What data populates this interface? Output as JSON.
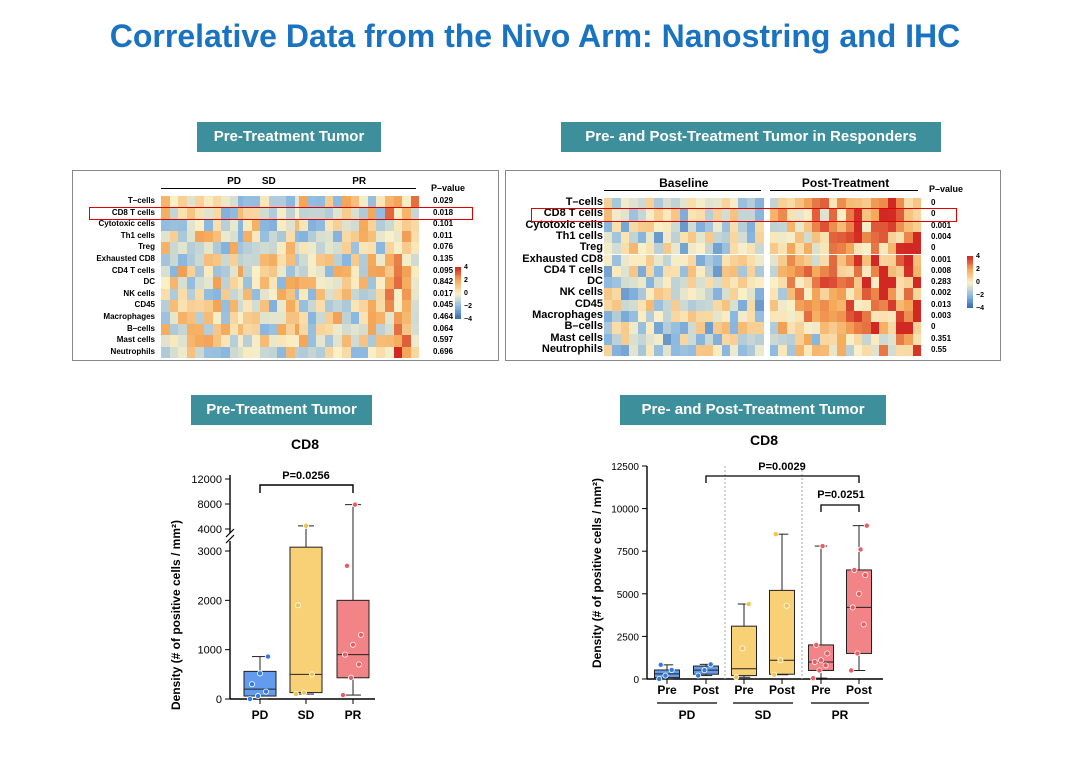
{
  "title": "Correlative Data from the Nivo Arm: Nanostring and IHC",
  "tags": {
    "tl": "Pre-Treatment Tumor",
    "tr": "Pre- and Post-Treatment Tumor in Responders",
    "bl": "Pre-Treatment Tumor",
    "br": "Pre- and Post-Treatment Tumor"
  },
  "colors": {
    "title": "#1a73c0",
    "tag_bg": "#3d8f9c",
    "pd": "#2f7be8",
    "sd": "#f6c24a",
    "pr": "#ee5a5f",
    "highlight": "#e00000"
  },
  "chart_data": [
    {
      "type": "heatmap",
      "panel": "left",
      "groups": [
        "PD",
        "SD",
        "PR"
      ],
      "pvalue_header": "P–value",
      "rows": [
        "T–cells",
        "CD8 T cells",
        "Cytotoxic cells",
        "Th1 cells",
        "Treg",
        "Exhausted CD8",
        "CD4 T cells",
        "DC",
        "NK cells",
        "CD45",
        "Macrophages",
        "B–cells",
        "Mast cells",
        "Neutrophils"
      ],
      "pvalues": [
        "0.029",
        "0.018",
        "0.101",
        "0.011",
        "0.076",
        "0.135",
        "0.095",
        "0.842",
        "0.017",
        "0.045",
        "0.464",
        "0.064",
        "0.597",
        "0.696"
      ],
      "highlighted_row": "CD8 T cells",
      "colorbar_ticks": [
        "4",
        "2",
        "0",
        "−2",
        "−4"
      ]
    },
    {
      "type": "heatmap",
      "panel": "right",
      "groups": [
        "Baseline",
        "Post-Treatment"
      ],
      "pvalue_header": "P–value",
      "rows": [
        "T–cells",
        "CD8 T cells",
        "Cytotoxic cells",
        "Th1 cells",
        "Treg",
        "Exhausted CD8",
        "CD4 T cells",
        "DC",
        "NK cells",
        "CD45",
        "Macrophages",
        "B–cells",
        "Mast cells",
        "Neutrophils"
      ],
      "pvalues": [
        "0",
        "0",
        "0.001",
        "0.004",
        "0",
        "0.001",
        "0.008",
        "0.283",
        "0.002",
        "0.013",
        "0.003",
        "0",
        "0.351",
        "0.55"
      ],
      "highlighted_row": "CD8 T cells",
      "colorbar_ticks": [
        "4",
        "2",
        "0",
        "−2",
        "−4"
      ]
    },
    {
      "type": "box",
      "title": "CD8",
      "ylabel": "Density (# of positive cells / mm²)",
      "categories": [
        "PD",
        "SD",
        "PR"
      ],
      "axis_break": true,
      "lower_ylim": [
        0,
        3000
      ],
      "lower_yticks": [
        "0",
        "1000",
        "2000",
        "3000"
      ],
      "upper_ylim": [
        3600,
        12000
      ],
      "upper_yticks": [
        "4000",
        "8000",
        "12000"
      ],
      "boxes": [
        {
          "name": "PD",
          "q1": 60,
          "median": 200,
          "q3": 560,
          "min": 0,
          "max": 860,
          "color": "#2f7be8",
          "points": [
            0,
            60,
            150,
            300,
            520,
            860
          ]
        },
        {
          "name": "SD",
          "q1": 130,
          "median": 500,
          "q3": 3230,
          "min": 100,
          "max": 4500,
          "color": "#f6c24a",
          "points": [
            100,
            130,
            500,
            1900,
            4500
          ]
        },
        {
          "name": "PR",
          "q1": 430,
          "median": 900,
          "q3": 2000,
          "min": 80,
          "max": 7900,
          "color": "#ee5a5f",
          "points": [
            80,
            430,
            700,
            900,
            1100,
            1300,
            2700,
            7900
          ]
        }
      ],
      "comparisons": [
        {
          "from": "PD",
          "to": "PR",
          "label": "P=0.0256"
        }
      ]
    },
    {
      "type": "box",
      "title": "CD8",
      "ylabel": "Density (# of positive cells / mm²)",
      "categories": [
        "Pre",
        "Post",
        "Pre",
        "Post",
        "Pre",
        "Post"
      ],
      "groups": [
        "PD",
        "SD",
        "PR"
      ],
      "ylim": [
        0,
        12500
      ],
      "yticks": [
        "0",
        "2500",
        "5000",
        "7500",
        "10000",
        "12500"
      ],
      "boxes": [
        {
          "name": "PD Pre",
          "q1": 80,
          "median": 300,
          "q3": 530,
          "min": 0,
          "max": 830,
          "color": "#2f7be8",
          "points": [
            0,
            200,
            530,
            830
          ]
        },
        {
          "name": "PD Post",
          "q1": 280,
          "median": 520,
          "q3": 760,
          "min": 200,
          "max": 860,
          "color": "#2f7be8",
          "points": [
            200,
            520,
            860
          ]
        },
        {
          "name": "SD Pre",
          "q1": 200,
          "median": 600,
          "q3": 3100,
          "min": 100,
          "max": 4400,
          "color": "#f6c24a",
          "points": [
            100,
            1800,
            4400
          ]
        },
        {
          "name": "SD Post",
          "q1": 280,
          "median": 1100,
          "q3": 5200,
          "min": 250,
          "max": 8500,
          "color": "#f6c24a",
          "points": [
            250,
            1100,
            4300,
            8500
          ]
        },
        {
          "name": "PR Pre",
          "q1": 500,
          "median": 1000,
          "q3": 2000,
          "min": 50,
          "max": 7800,
          "color": "#ee5a5f",
          "points": [
            50,
            500,
            800,
            1000,
            1100,
            1500,
            2000,
            7800
          ]
        },
        {
          "name": "PR Post",
          "q1": 1500,
          "median": 4200,
          "q3": 6400,
          "min": 500,
          "max": 9000,
          "color": "#ee5a5f",
          "points": [
            500,
            1500,
            3200,
            4200,
            5000,
            6100,
            6400,
            7600,
            9000
          ]
        }
      ],
      "comparisons": [
        {
          "from": "PD Pre",
          "to": "PR Post",
          "label": "P=0.0029"
        },
        {
          "from": "PR Pre",
          "to": "PR Post",
          "label": "P=0.0251"
        }
      ]
    }
  ]
}
